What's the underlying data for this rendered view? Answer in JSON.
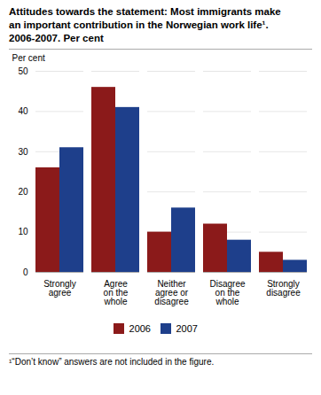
{
  "chart_data": {
    "type": "bar",
    "title": "Attitudes towards the statement: Most immigrants make\nan important contribution in the Norwegian work life¹.\n2006-2007. Per cent",
    "ylabel": "Per cent",
    "footnote": "¹“Don’t know” answers are not included in the figure.",
    "categories": [
      "Strongly\nagree",
      "Agree\non the\nwhole",
      "Neither\nagree or\ndisagree",
      "Disagree\non the\nwhole",
      "Strongly\ndisagree"
    ],
    "series": [
      {
        "name": "2006",
        "color": "#8B1A1A",
        "values": [
          26,
          46,
          10,
          12,
          5
        ]
      },
      {
        "name": "2007",
        "color": "#1E3F8B",
        "values": [
          31,
          41,
          16,
          8,
          3
        ]
      }
    ],
    "ylim": [
      0,
      50
    ],
    "yticks": [
      0,
      10,
      20,
      30,
      40,
      50
    ],
    "grid": true,
    "legend": "bottom"
  }
}
